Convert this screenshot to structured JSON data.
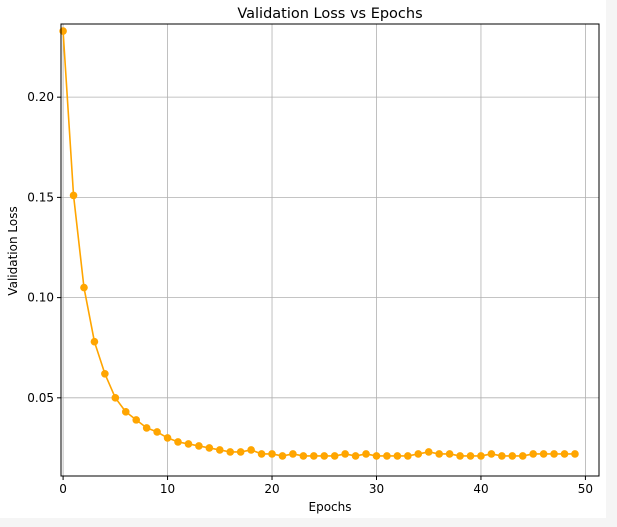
{
  "chart_data": {
    "type": "line",
    "title": "Validation Loss vs Epochs",
    "xlabel": "Epochs",
    "ylabel": "Validation Loss",
    "xlim": [
      -0.2,
      51.3
    ],
    "ylim": [
      0.011,
      0.2365
    ],
    "xticks": [
      {
        "value": 0,
        "label": "0"
      },
      {
        "value": 10,
        "label": "10"
      },
      {
        "value": 20,
        "label": "20"
      },
      {
        "value": 30,
        "label": "30"
      },
      {
        "value": 40,
        "label": "40"
      },
      {
        "value": 50,
        "label": "50"
      }
    ],
    "yticks": [
      {
        "value": 0.05,
        "label": "0.05"
      },
      {
        "value": 0.1,
        "label": "0.10"
      },
      {
        "value": 0.15,
        "label": "0.15"
      },
      {
        "value": 0.2,
        "label": "0.20"
      }
    ],
    "grid": true,
    "color": "#ffa500",
    "series": [
      {
        "x": [
          0,
          1,
          2,
          3,
          4,
          5,
          6,
          7,
          8,
          9,
          10,
          11,
          12,
          13,
          14,
          15,
          16,
          17,
          18,
          19,
          20,
          21,
          22,
          23,
          24,
          25,
          26,
          27,
          28,
          29,
          30,
          31,
          32,
          33,
          34,
          35,
          36,
          37,
          38,
          39,
          40,
          41,
          42,
          43,
          44,
          45,
          46,
          47,
          48,
          49
        ],
        "values": [
          0.233,
          0.151,
          0.105,
          0.078,
          0.062,
          0.05,
          0.043,
          0.039,
          0.035,
          0.033,
          0.03,
          0.028,
          0.027,
          0.026,
          0.025,
          0.024,
          0.023,
          0.023,
          0.024,
          0.022,
          0.022,
          0.021,
          0.022,
          0.021,
          0.021,
          0.021,
          0.021,
          0.022,
          0.021,
          0.022,
          0.021,
          0.021,
          0.021,
          0.021,
          0.022,
          0.023,
          0.022,
          0.022,
          0.021,
          0.021,
          0.021,
          0.022,
          0.021,
          0.021,
          0.021,
          0.022,
          0.022,
          0.022,
          0.022,
          0.022
        ]
      }
    ]
  }
}
